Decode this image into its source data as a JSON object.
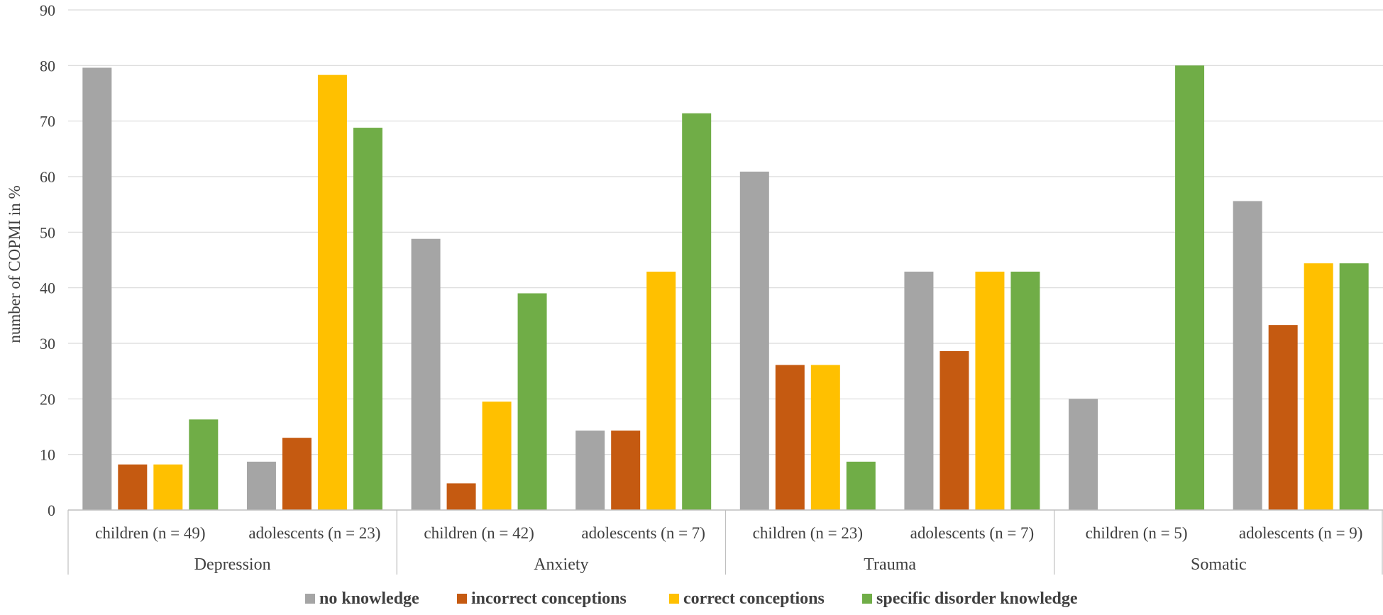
{
  "chart_data": {
    "type": "bar",
    "title": "",
    "ylabel": "number of COPMI in %",
    "xlabel": "",
    "ylim": [
      0,
      90
    ],
    "yticks": [
      0,
      10,
      20,
      30,
      40,
      50,
      60,
      70,
      80,
      90
    ],
    "grid": true,
    "legend_position": "bottom",
    "groups": [
      {
        "name": "Depression",
        "categories": [
          "children (n = 49)",
          "adolescents (n = 23)"
        ]
      },
      {
        "name": "Anxiety",
        "categories": [
          "children (n = 42)",
          "adolescents (n = 7)"
        ]
      },
      {
        "name": "Trauma",
        "categories": [
          "children (n = 23)",
          "adolescents (n = 7)"
        ]
      },
      {
        "name": "Somatic",
        "categories": [
          "children (n = 5)",
          "adolescents (n = 9)"
        ]
      }
    ],
    "categories": [
      "children (n = 49)",
      "adolescents (n = 23)",
      "children (n = 42)",
      "adolescents (n = 7)",
      "children (n = 23)",
      "adolescents (n = 7)",
      "children (n = 5)",
      "adolescents (n = 9)"
    ],
    "series": [
      {
        "name": "no knowledge",
        "color": "#a5a5a5",
        "values": [
          79.6,
          8.7,
          48.8,
          14.3,
          60.9,
          42.9,
          20.0,
          55.6
        ]
      },
      {
        "name": "incorrect conceptions",
        "color": "#c55a11",
        "values": [
          8.2,
          13.0,
          4.8,
          14.3,
          26.1,
          28.6,
          0,
          33.3
        ]
      },
      {
        "name": "correct conceptions",
        "color": "#ffc000",
        "values": [
          8.2,
          78.3,
          19.5,
          42.9,
          26.1,
          42.9,
          0,
          44.4
        ]
      },
      {
        "name": "specific disorder knowledge",
        "color": "#70ad47",
        "values": [
          16.3,
          68.8,
          39.0,
          71.4,
          8.7,
          42.9,
          80.0,
          44.4
        ]
      }
    ]
  }
}
